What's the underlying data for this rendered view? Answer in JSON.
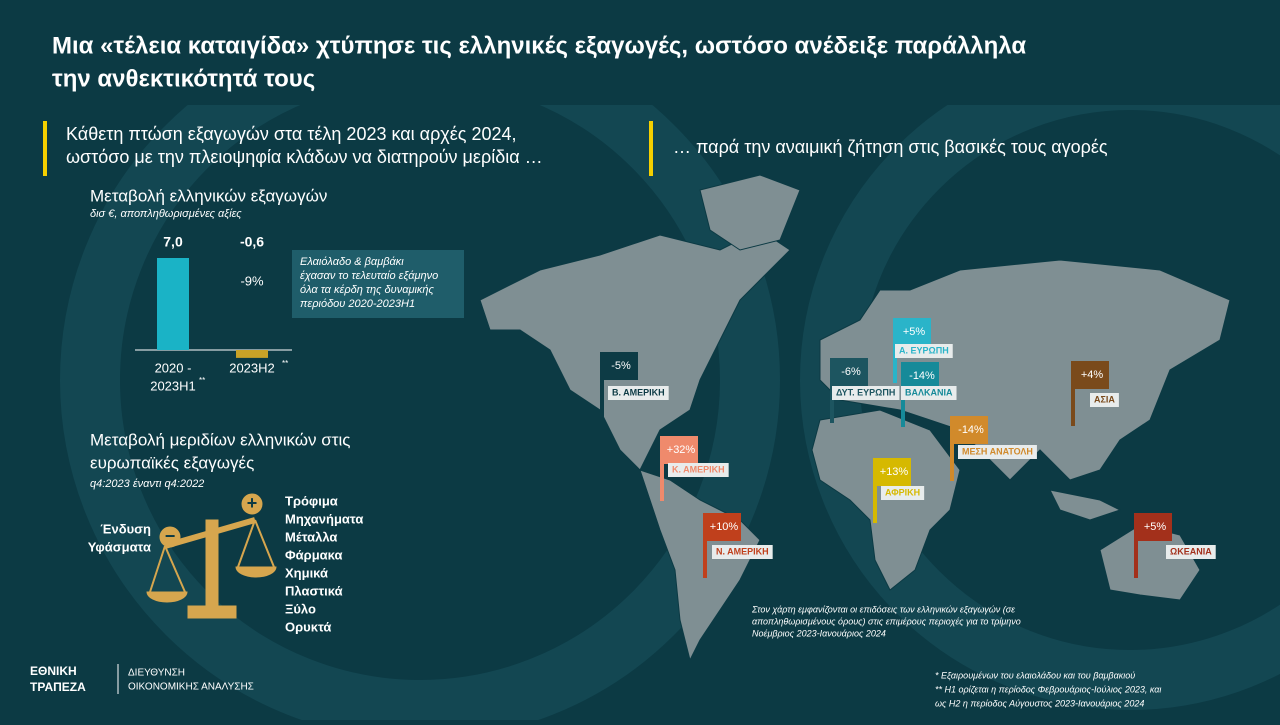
{
  "header": {
    "title_lines": [
      "Μια «τέλεια καταιγίδα» χτύπησε τις ελληνικές εξαγωγές, ωστόσο ανέδειξε παράλληλα",
      "την ανθεκτικότητά τους"
    ]
  },
  "left": {
    "intro_lines": [
      "Κάθετη πτώση εξαγωγών στα τέλη 2023 και αρχές 2024,",
      "ωστόσο με την πλειοψηφία κλάδων να διατηρούν μερίδια …"
    ],
    "note_lines": [
      "Ελαιόλαδο & βαμβάκι",
      "έχασαν το τελευταίο εξάμηνο",
      "όλα τα κέρδη της δυναμικής",
      "περιόδου 2020-2023Η1"
    ],
    "shares_title_lines": [
      "Μεταβολή μεριδίων ελληνικών στις",
      "ευρωπαϊκές εξαγωγές"
    ],
    "shares_subtitle": "q4:2023 έναντι q4:2022",
    "losers": [
      "Ένδυση",
      "Υφάσματα"
    ],
    "gainers": [
      "Τρόφιμα",
      "Μηχανήματα",
      "Μέταλλα",
      "Φάρμακα",
      "Χημικά",
      "Πλαστικά",
      "Ξύλο",
      "Ορυκτά"
    ]
  },
  "chart_data": {
    "type": "bar",
    "title": "Μεταβολή ελληνικών εξαγωγών",
    "subtitle": "δισ €,  αποπληθωρισμένες αξίες",
    "categories": [
      "2020 -",
      "2023H2"
    ],
    "category_second_line": "2023H1",
    "category_marks": [
      "**",
      "**"
    ],
    "values": [
      7.0,
      -0.6
    ],
    "value_labels": [
      "7,0",
      "-0,6"
    ],
    "colors": [
      "#1ab3c6",
      "#c9a227"
    ],
    "annotation": "-9%"
  },
  "map": {
    "intro": "… παρά την αναιμική ζήτηση στις βασικές τους αγορές",
    "regions": [
      {
        "name": "Β. ΑΜΕΡΙΚΗ",
        "change": "-5%",
        "color": "#0d3b45"
      },
      {
        "name": "Κ. ΑΜΕΡΙΚΗ",
        "change": "+32%",
        "color": "#ef8a6c"
      },
      {
        "name": "Ν. ΑΜΕΡΙΚΗ",
        "change": "+10%",
        "color": "#c0401c"
      },
      {
        "name": "ΔΥΤ. ΕΥΡΩΠΗ",
        "change": "-6%",
        "color": "#1d5560"
      },
      {
        "name": "Α. ΕΥΡΩΠΗ",
        "change": "+5%",
        "color": "#2ab4c9"
      },
      {
        "name": "ΒΑΛΚΑΝΙΑ",
        "change": "-14%",
        "color": "#168a99"
      },
      {
        "name": "ΜΕΣΗ ΑΝΑΤΟΛΗ",
        "change": "-14%",
        "color": "#d18a2b"
      },
      {
        "name": "ΑΦΡΙΚΗ",
        "change": "+13%",
        "color": "#d6b900"
      },
      {
        "name": "ΑΣΙΑ",
        "change": "+4%",
        "color": "#7a4a1b"
      },
      {
        "name": "ΩΚΕΑΝΙΑ",
        "change": "+5%",
        "color": "#a3301b"
      }
    ],
    "note_lines": [
      "Στον χάρτη εμφανίζονται οι επιδόσεις των ελληνικών εξαγωγών (σε",
      "αποπληθωρισμένους όρους) στις επιμέρους περιοχές για το τρίμηνο",
      "Νοέμβριος 2023-Ιανουάριος 2024"
    ]
  },
  "footer": {
    "logo_lines": [
      "ΕΘΝΙΚΗ",
      "ΤΡΑΠΕΖΑ"
    ],
    "dept_lines": [
      "ΔΙΕΥΘΥΝΣΗ",
      "ΟΙΚΟΝΟΜΙΚΗΣ ΑΝΑΛΥΣΗΣ"
    ],
    "footnotes": [
      "* Εξαιρουμένων του ελαιολάδου και του βαμβακιού",
      "** Η1 ορίζεται η περίοδος Φεβρουάριος-Ιούλιος 2023, και",
      "ως Η2 η περίοδος Αύγουστος 2023-Ιανουάριος 2024"
    ]
  }
}
